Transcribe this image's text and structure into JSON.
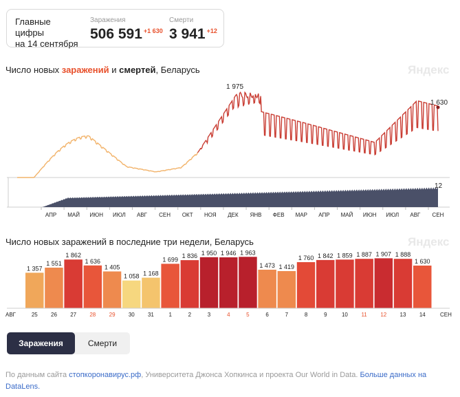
{
  "summary": {
    "label_line1": "Главные цифры",
    "label_line2": "на 14 сентября",
    "cases_caption": "Заражения",
    "cases_value": "506 591",
    "cases_delta": "+1 630",
    "deaths_caption": "Смерти",
    "deaths_value": "3 941",
    "deaths_delta": "+12"
  },
  "chart1": {
    "title_part1": "Число новых ",
    "title_cases": "заражений",
    "title_part2": " и ",
    "title_deaths": "смертей",
    "title_part3": ", Беларусь",
    "brand": "Яндекс",
    "peak_label": "1 975",
    "last_label": "1 630",
    "deaths_last_label": "12",
    "months": [
      "АПР",
      "МАЙ",
      "ИЮН",
      "ИЮЛ",
      "АВГ",
      "СЕН",
      "ОКТ",
      "НОЯ",
      "ДЕК",
      "ЯНВ",
      "ФЕВ",
      "МАР",
      "АПР",
      "МАЙ",
      "ИЮН",
      "ИЮЛ",
      "АВГ",
      "СЕН"
    ]
  },
  "chart2": {
    "title": "Число новых заражений в последние три недели, Беларусь",
    "brand": "Яндекс",
    "month_start": "АВГ",
    "month_end": "СЕН"
  },
  "chart_data": [
    {
      "type": "line",
      "title": "Число новых заражений и смертей, Беларусь",
      "series": [
        {
          "name": "заражений",
          "annotated_values": {
            "peak": 1975,
            "last": 1630
          }
        },
        {
          "name": "смертей",
          "annotated_values": {
            "last": 12
          }
        }
      ],
      "x_ticks": [
        "АПР",
        "МАЙ",
        "ИЮН",
        "ИЮЛ",
        "АВГ",
        "СЕН",
        "ОКТ",
        "НОЯ",
        "ДЕК",
        "ЯНВ",
        "ФЕВ",
        "МАР",
        "АПР",
        "МАЙ",
        "ИЮН",
        "ИЮЛ",
        "АВГ",
        "СЕН"
      ]
    },
    {
      "type": "bar",
      "title": "Число новых заражений в последние три недели, Беларусь",
      "categories": [
        "25",
        "26",
        "27",
        "28",
        "29",
        "30",
        "31",
        "1",
        "2",
        "3",
        "4",
        "5",
        "6",
        "7",
        "8",
        "9",
        "10",
        "11",
        "12",
        "13",
        "14"
      ],
      "values": [
        1357,
        1551,
        1862,
        1636,
        1405,
        1058,
        1168,
        1699,
        1836,
        1950,
        1946,
        1963,
        1473,
        1419,
        1760,
        1842,
        1859,
        1887,
        1907,
        1888,
        1630
      ],
      "labels": [
        "1 357",
        "1 551",
        "1 862",
        "1 636",
        "1 405",
        "1 058",
        "1 168",
        "1 699",
        "1 836",
        "1 950",
        "1 946",
        "1 963",
        "1 473",
        "1 419",
        "1 760",
        "1 842",
        "1 859",
        "1 887",
        "1 907",
        "1 888",
        "1 630"
      ],
      "weekend": [
        false,
        false,
        false,
        true,
        true,
        false,
        false,
        false,
        false,
        false,
        true,
        true,
        false,
        false,
        false,
        false,
        false,
        true,
        true,
        false,
        false
      ],
      "colors": [
        "#f0a75a",
        "#ee8a4e",
        "#d93b34",
        "#e8563a",
        "#ee8a4e",
        "#f6d77f",
        "#f4c46d",
        "#e8563a",
        "#d93b34",
        "#b8202c",
        "#b8202c",
        "#b8202c",
        "#ee8a4e",
        "#ee8a4e",
        "#e34a37",
        "#d93b34",
        "#d93b34",
        "#d93b34",
        "#c92c30",
        "#d93b34",
        "#e8563a"
      ],
      "ylim": [
        0,
        2050
      ]
    }
  ]
}
